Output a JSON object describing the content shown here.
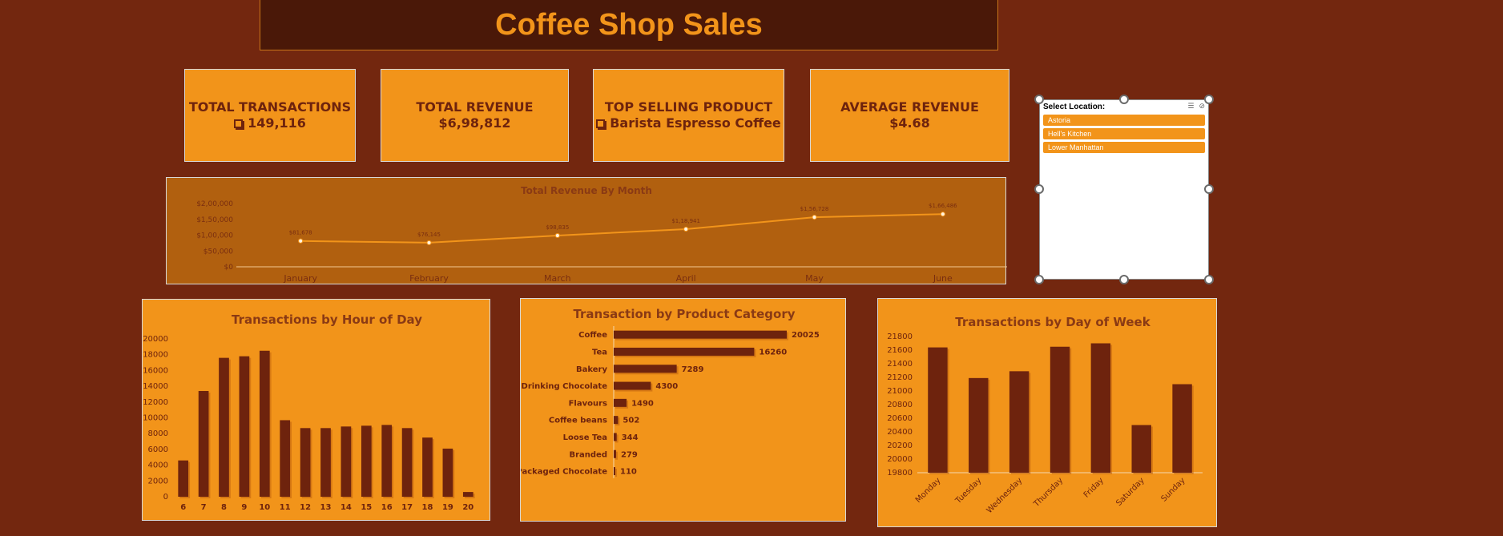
{
  "dashboard": {
    "title": "Coffee Shop Sales"
  },
  "kpis": {
    "transactions": {
      "label": "TOTAL TRANSACTIONS",
      "value": "149,116",
      "icon": "checkbox-icon"
    },
    "revenue": {
      "label": "TOTAL REVENUE",
      "value": "$6,98,812"
    },
    "top_product": {
      "label": "TOP SELLING PRODUCT",
      "value": "Barista Espresso Coffee",
      "icon": "checkbox-icon"
    },
    "avg_revenue": {
      "label": "AVERAGE REVENUE",
      "value": "$4.68"
    }
  },
  "slicer": {
    "title": "Select Location:",
    "items": [
      "Astoria",
      "Hell's Kitchen",
      "Lower Manhattan"
    ],
    "icons": [
      "multi-select-icon",
      "clear-filter-icon"
    ]
  },
  "colors": {
    "background": "#73270f",
    "accent": "#f2941a",
    "bar": "#6e230d",
    "line": "#f2941a"
  },
  "chart_data": [
    {
      "id": "revenue-by-month",
      "type": "line",
      "title": "Total Revenue By Month",
      "categories": [
        "January",
        "February",
        "March",
        "April",
        "May",
        "June"
      ],
      "values": [
        81678,
        76145,
        98835,
        118941,
        156728,
        166486
      ],
      "data_labels": [
        "$81,678",
        "$76,145",
        "$98,835",
        "$1,18,941",
        "$1,56,728",
        "$1,66,486"
      ],
      "ylim": [
        0,
        200000
      ],
      "yticks": [
        0,
        50000,
        100000,
        150000,
        200000
      ],
      "ytick_labels": [
        "$0",
        "$50,000",
        "$1,00,000",
        "$1,50,000",
        "$2,00,000"
      ]
    },
    {
      "id": "transactions-by-hour",
      "type": "bar",
      "title": "Transactions by Hour of Day",
      "categories": [
        "6",
        "7",
        "8",
        "9",
        "10",
        "11",
        "12",
        "13",
        "14",
        "15",
        "16",
        "17",
        "18",
        "19",
        "20"
      ],
      "values": [
        4600,
        13400,
        17600,
        17800,
        18500,
        9700,
        8700,
        8700,
        8900,
        9000,
        9100,
        8700,
        7500,
        6100,
        600
      ],
      "ylim": [
        0,
        20000
      ],
      "yticks": [
        0,
        2000,
        4000,
        6000,
        8000,
        10000,
        12000,
        14000,
        16000,
        18000,
        20000
      ]
    },
    {
      "id": "transactions-by-category",
      "type": "bar",
      "orientation": "horizontal",
      "title": "Transaction by Product Category",
      "categories": [
        "Coffee",
        "Tea",
        "Bakery",
        "Drinking Chocolate",
        "Flavours",
        "Coffee beans",
        "Loose Tea",
        "Branded",
        "Packaged Chocolate"
      ],
      "values": [
        20025,
        16260,
        7289,
        4300,
        1490,
        502,
        344,
        279,
        110
      ]
    },
    {
      "id": "transactions-by-weekday",
      "type": "bar",
      "title": "Transactions by Day of Week",
      "categories": [
        "Monday",
        "Tuesday",
        "Wednesday",
        "Thursday",
        "Friday",
        "Saturday",
        "Sunday"
      ],
      "values": [
        21640,
        21190,
        21290,
        21650,
        21700,
        20500,
        21100
      ],
      "ylim": [
        19800,
        21800
      ],
      "yticks": [
        19800,
        20000,
        20200,
        20400,
        20600,
        20800,
        21000,
        21200,
        21400,
        21600,
        21800
      ]
    }
  ]
}
